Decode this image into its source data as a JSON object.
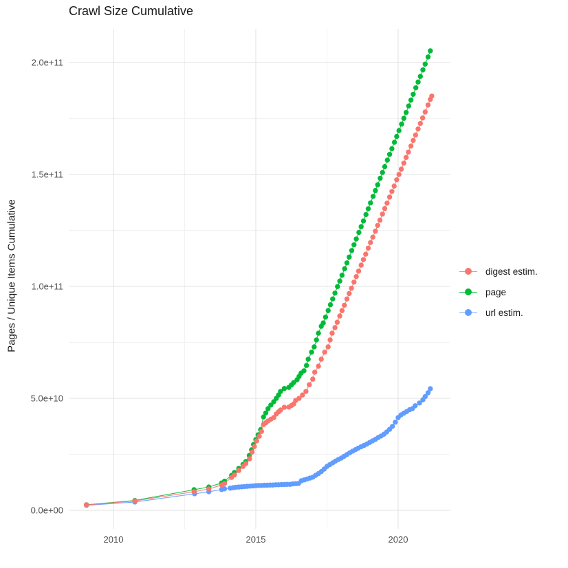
{
  "chart_data": {
    "type": "scatter",
    "title": "Crawl Size Cumulative",
    "xlabel": "",
    "ylabel": "Pages / Unique Items Cumulative",
    "x_ticks": [
      2010,
      2015,
      2020
    ],
    "x_tick_labels": [
      "2010",
      "2015",
      "2020"
    ],
    "x_minor_ticks": [
      2012.5,
      2017.5
    ],
    "y_ticks_e9": [
      0,
      50,
      100,
      150,
      200
    ],
    "y_tick_labels": [
      "0.0e+00",
      "5.0e+10",
      "1.0e+11",
      "1.5e+11",
      "2.0e+11"
    ],
    "y_minor_ticks_e9": [
      25,
      75,
      125,
      175
    ],
    "x_range": [
      2008.5,
      2021.75
    ],
    "y_range": [
      0,
      205000000000.0
    ],
    "values_scale": 1000000000,
    "grid": "major-and-minor",
    "legend_position": "right",
    "colors": {
      "digest": "#F8766D",
      "page": "#00BA38",
      "url": "#619CFF"
    },
    "legend": [
      {
        "label": "digest estim.",
        "color": "#F8766D"
      },
      {
        "label": "page",
        "color": "#00BA38"
      },
      {
        "label": "url estim.",
        "color": "#619CFF"
      }
    ],
    "series": [
      {
        "name": "page",
        "color": "#00BA38",
        "points_year_value_e9": [
          [
            2009.05,
            2.5
          ],
          [
            2010.75,
            4.4
          ],
          [
            2012.83,
            9.2
          ],
          [
            2013.35,
            10.4
          ],
          [
            2013.8,
            12.2
          ],
          [
            2013.9,
            13.0
          ],
          [
            2014.15,
            15.6
          ],
          [
            2014.25,
            16.9
          ],
          [
            2014.4,
            18.7
          ],
          [
            2014.55,
            20.5
          ],
          [
            2014.65,
            21.8
          ],
          [
            2014.77,
            24.5
          ],
          [
            2014.85,
            27.0
          ],
          [
            2014.92,
            29.4
          ],
          [
            2015.0,
            31.6
          ],
          [
            2015.08,
            33.7
          ],
          [
            2015.17,
            36.0
          ],
          [
            2015.27,
            41.7
          ],
          [
            2015.35,
            43.5
          ],
          [
            2015.43,
            45.4
          ],
          [
            2015.53,
            47.0
          ],
          [
            2015.63,
            48.5
          ],
          [
            2015.72,
            50.0
          ],
          [
            2015.8,
            51.5
          ],
          [
            2015.87,
            53.1
          ],
          [
            2016.0,
            54.4
          ],
          [
            2016.16,
            54.9
          ],
          [
            2016.25,
            56.0
          ],
          [
            2016.33,
            57.1
          ],
          [
            2016.45,
            58.3
          ],
          [
            2016.52,
            59.8
          ],
          [
            2016.59,
            61.3
          ],
          [
            2016.69,
            62.3
          ],
          [
            2016.78,
            64.7
          ],
          [
            2016.84,
            67.5
          ],
          [
            2016.96,
            70.6
          ],
          [
            2017.05,
            73.0
          ],
          [
            2017.13,
            76.1
          ],
          [
            2017.2,
            79.1
          ],
          [
            2017.3,
            82.2
          ],
          [
            2017.37,
            83.7
          ],
          [
            2017.45,
            86.3
          ],
          [
            2017.54,
            89.2
          ],
          [
            2017.62,
            91.8
          ],
          [
            2017.7,
            94.4
          ],
          [
            2017.78,
            97.0
          ],
          [
            2017.87,
            99.9
          ],
          [
            2017.95,
            102.4
          ],
          [
            2018.03,
            105.0
          ],
          [
            2018.12,
            107.9
          ],
          [
            2018.2,
            110.5
          ],
          [
            2018.28,
            113.1
          ],
          [
            2018.37,
            116.0
          ],
          [
            2018.45,
            118.6
          ],
          [
            2018.53,
            121.2
          ],
          [
            2018.62,
            124.1
          ],
          [
            2018.7,
            126.7
          ],
          [
            2018.78,
            129.2
          ],
          [
            2018.87,
            132.1
          ],
          [
            2018.95,
            134.7
          ],
          [
            2019.03,
            137.3
          ],
          [
            2019.12,
            140.2
          ],
          [
            2019.2,
            142.8
          ],
          [
            2019.28,
            145.4
          ],
          [
            2019.37,
            148.3
          ],
          [
            2019.45,
            150.9
          ],
          [
            2019.53,
            153.5
          ],
          [
            2019.62,
            156.4
          ],
          [
            2019.7,
            159.0
          ],
          [
            2019.78,
            161.5
          ],
          [
            2019.87,
            164.4
          ],
          [
            2019.95,
            167.0
          ],
          [
            2020.03,
            169.6
          ],
          [
            2020.12,
            172.5
          ],
          [
            2020.2,
            175.1
          ],
          [
            2020.28,
            177.7
          ],
          [
            2020.37,
            180.6
          ],
          [
            2020.45,
            183.2
          ],
          [
            2020.53,
            185.8
          ],
          [
            2020.62,
            188.7
          ],
          [
            2020.7,
            191.3
          ],
          [
            2020.78,
            193.8
          ],
          [
            2020.87,
            196.7
          ],
          [
            2020.95,
            199.3
          ],
          [
            2021.05,
            202.5
          ],
          [
            2021.13,
            205.2
          ]
        ]
      },
      {
        "name": "url estim.",
        "color": "#619CFF",
        "points_year_value_e9": [
          [
            2009.05,
            2.2
          ],
          [
            2010.75,
            3.7
          ],
          [
            2012.85,
            7.4
          ],
          [
            2013.35,
            8.3
          ],
          [
            2013.8,
            9.3
          ],
          [
            2013.9,
            9.6
          ],
          [
            2014.1,
            9.9
          ],
          [
            2014.2,
            10.1
          ],
          [
            2014.3,
            10.3
          ],
          [
            2014.4,
            10.4
          ],
          [
            2014.5,
            10.5
          ],
          [
            2014.6,
            10.6
          ],
          [
            2014.7,
            10.7
          ],
          [
            2014.8,
            10.8
          ],
          [
            2014.9,
            10.9
          ],
          [
            2015.0,
            11.0
          ],
          [
            2015.1,
            11.1
          ],
          [
            2015.2,
            11.1
          ],
          [
            2015.3,
            11.2
          ],
          [
            2015.4,
            11.2
          ],
          [
            2015.5,
            11.3
          ],
          [
            2015.6,
            11.3
          ],
          [
            2015.7,
            11.4
          ],
          [
            2015.8,
            11.4
          ],
          [
            2015.9,
            11.5
          ],
          [
            2016.0,
            11.5
          ],
          [
            2016.1,
            11.6
          ],
          [
            2016.2,
            11.6
          ],
          [
            2016.3,
            11.8
          ],
          [
            2016.4,
            11.9
          ],
          [
            2016.5,
            12.0
          ],
          [
            2016.6,
            13.2
          ],
          [
            2016.7,
            13.6
          ],
          [
            2016.8,
            14.0
          ],
          [
            2016.9,
            14.4
          ],
          [
            2017.0,
            14.8
          ],
          [
            2017.1,
            15.6
          ],
          [
            2017.2,
            16.4
          ],
          [
            2017.3,
            17.3
          ],
          [
            2017.4,
            18.4
          ],
          [
            2017.5,
            19.6
          ],
          [
            2017.6,
            20.4
          ],
          [
            2017.7,
            21.2
          ],
          [
            2017.8,
            22.0
          ],
          [
            2017.9,
            22.7
          ],
          [
            2018.0,
            23.3
          ],
          [
            2018.1,
            24.1
          ],
          [
            2018.2,
            24.9
          ],
          [
            2018.3,
            25.7
          ],
          [
            2018.4,
            26.4
          ],
          [
            2018.5,
            27.1
          ],
          [
            2018.6,
            27.8
          ],
          [
            2018.7,
            28.4
          ],
          [
            2018.8,
            29.0
          ],
          [
            2018.9,
            29.6
          ],
          [
            2019.0,
            30.3
          ],
          [
            2019.1,
            31.0
          ],
          [
            2019.2,
            31.7
          ],
          [
            2019.3,
            32.5
          ],
          [
            2019.4,
            33.2
          ],
          [
            2019.5,
            34.0
          ],
          [
            2019.6,
            35.0
          ],
          [
            2019.7,
            36.2
          ],
          [
            2019.8,
            37.5
          ],
          [
            2019.9,
            39.4
          ],
          [
            2020.0,
            41.4
          ],
          [
            2020.1,
            42.6
          ],
          [
            2020.2,
            43.4
          ],
          [
            2020.3,
            44.1
          ],
          [
            2020.4,
            44.9
          ],
          [
            2020.5,
            45.4
          ],
          [
            2020.6,
            46.7
          ],
          [
            2020.75,
            47.9
          ],
          [
            2020.87,
            49.4
          ],
          [
            2020.95,
            50.8
          ],
          [
            2021.05,
            52.5
          ],
          [
            2021.13,
            54.3
          ]
        ]
      },
      {
        "name": "digest estim.",
        "color": "#F8766D",
        "points_year_value_e9": [
          [
            2009.05,
            2.4
          ],
          [
            2010.75,
            4.2
          ],
          [
            2012.83,
            8.3
          ],
          [
            2013.35,
            9.5
          ],
          [
            2013.8,
            11.3
          ],
          [
            2013.9,
            12.0
          ],
          [
            2014.15,
            14.7
          ],
          [
            2014.25,
            15.8
          ],
          [
            2014.4,
            17.8
          ],
          [
            2014.55,
            19.6
          ],
          [
            2014.65,
            20.9
          ],
          [
            2014.78,
            23.0
          ],
          [
            2014.87,
            26.0
          ],
          [
            2014.95,
            28.5
          ],
          [
            2015.03,
            31.0
          ],
          [
            2015.12,
            33.1
          ],
          [
            2015.2,
            35.2
          ],
          [
            2015.27,
            38.3
          ],
          [
            2015.35,
            39.1
          ],
          [
            2015.43,
            39.9
          ],
          [
            2015.53,
            40.7
          ],
          [
            2015.63,
            41.4
          ],
          [
            2015.72,
            43.0
          ],
          [
            2015.8,
            44.0
          ],
          [
            2015.87,
            44.8
          ],
          [
            2016.0,
            46.0
          ],
          [
            2016.16,
            46.1
          ],
          [
            2016.25,
            46.8
          ],
          [
            2016.33,
            47.5
          ],
          [
            2016.4,
            49.1
          ],
          [
            2016.52,
            50.0
          ],
          [
            2016.64,
            51.5
          ],
          [
            2016.76,
            53.1
          ],
          [
            2016.88,
            56.1
          ],
          [
            2017.0,
            58.6
          ],
          [
            2017.07,
            61.7
          ],
          [
            2017.2,
            64.4
          ],
          [
            2017.3,
            67.5
          ],
          [
            2017.42,
            70.6
          ],
          [
            2017.54,
            73.0
          ],
          [
            2017.61,
            76.1
          ],
          [
            2017.68,
            79.1
          ],
          [
            2017.78,
            81.6
          ],
          [
            2017.86,
            84.0
          ],
          [
            2017.95,
            86.8
          ],
          [
            2018.03,
            89.2
          ],
          [
            2018.11,
            91.6
          ],
          [
            2018.2,
            94.4
          ],
          [
            2018.28,
            96.8
          ],
          [
            2018.36,
            99.2
          ],
          [
            2018.45,
            101.9
          ],
          [
            2018.53,
            104.4
          ],
          [
            2018.61,
            106.8
          ],
          [
            2018.7,
            109.5
          ],
          [
            2018.78,
            112.0
          ],
          [
            2018.86,
            114.4
          ],
          [
            2018.95,
            117.1
          ],
          [
            2019.03,
            119.6
          ],
          [
            2019.11,
            122.0
          ],
          [
            2019.2,
            124.7
          ],
          [
            2019.28,
            127.2
          ],
          [
            2019.36,
            129.6
          ],
          [
            2019.45,
            132.3
          ],
          [
            2019.53,
            134.8
          ],
          [
            2019.61,
            137.2
          ],
          [
            2019.7,
            139.9
          ],
          [
            2019.78,
            142.4
          ],
          [
            2019.86,
            144.8
          ],
          [
            2019.95,
            147.6
          ],
          [
            2020.03,
            150.0
          ],
          [
            2020.11,
            152.4
          ],
          [
            2020.2,
            155.1
          ],
          [
            2020.28,
            157.6
          ],
          [
            2020.36,
            160.0
          ],
          [
            2020.45,
            162.7
          ],
          [
            2020.53,
            165.2
          ],
          [
            2020.61,
            167.6
          ],
          [
            2020.7,
            170.3
          ],
          [
            2020.78,
            172.8
          ],
          [
            2020.86,
            175.2
          ],
          [
            2020.95,
            177.9
          ],
          [
            2021.05,
            181.0
          ],
          [
            2021.13,
            183.5
          ],
          [
            2021.18,
            185.0
          ]
        ]
      }
    ]
  }
}
